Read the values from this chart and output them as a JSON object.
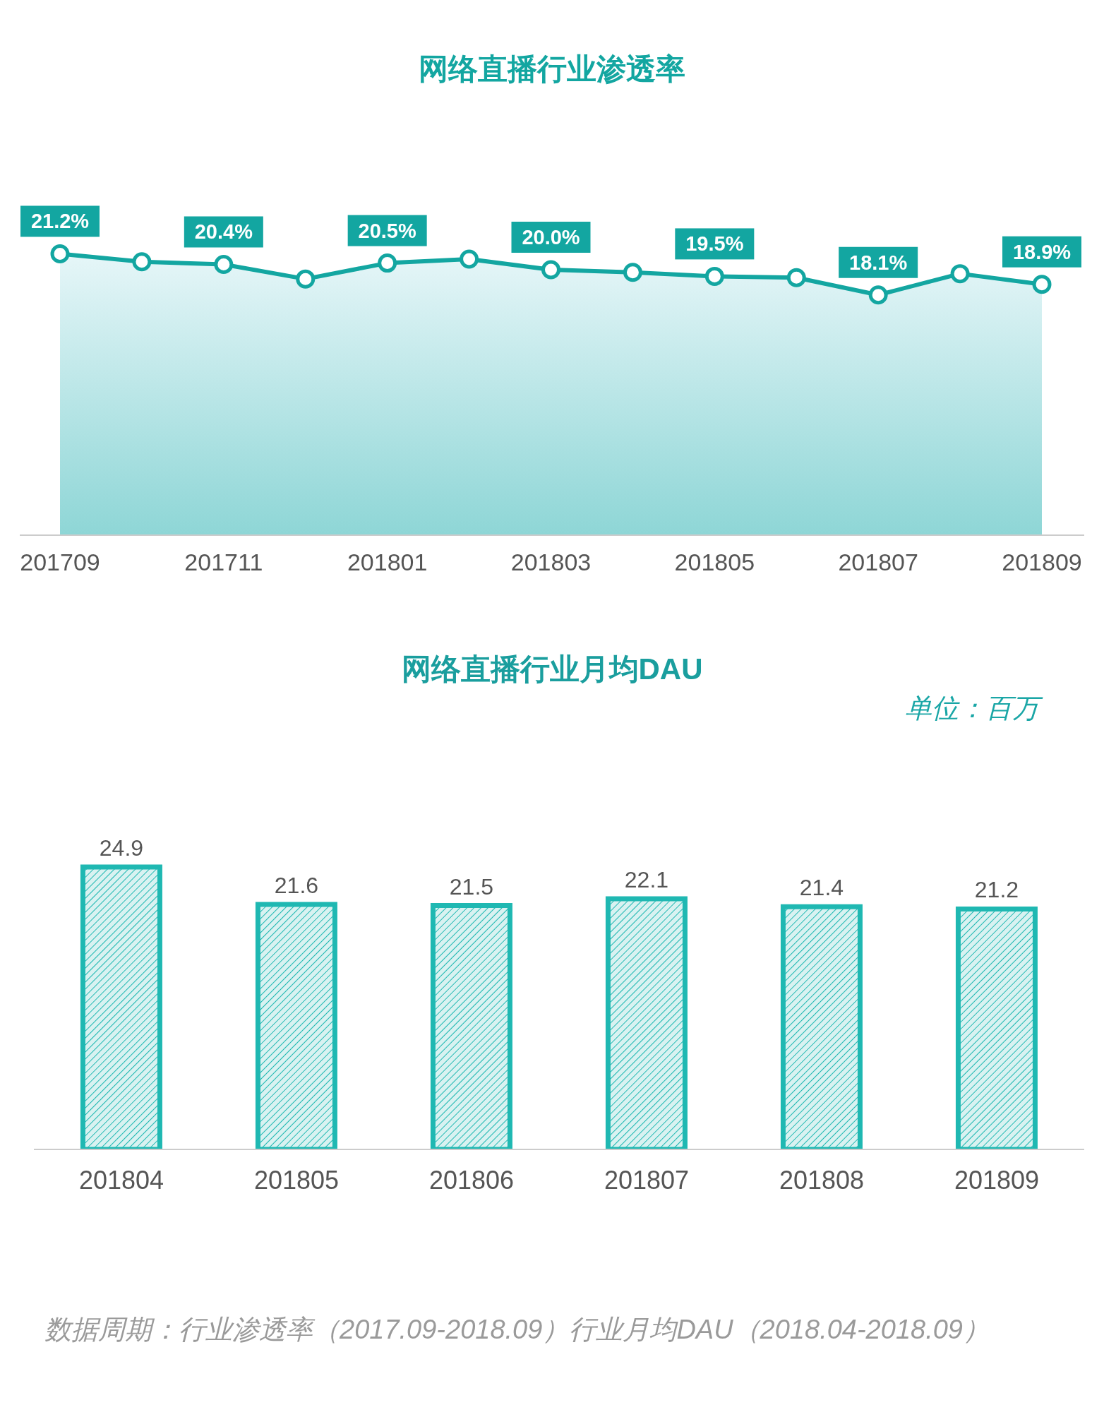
{
  "chart_data": [
    {
      "type": "line",
      "title": "网络直播行业渗透率",
      "categories": [
        "201709",
        null,
        "201711",
        null,
        "201801",
        null,
        "201803",
        null,
        "201805",
        null,
        "201807",
        null,
        "201809"
      ],
      "values": [
        21.2,
        20.6,
        20.4,
        19.3,
        20.5,
        20.8,
        20.0,
        19.8,
        19.5,
        19.4,
        18.1,
        19.7,
        18.9
      ],
      "value_labels": [
        "21.2%",
        null,
        "20.4%",
        null,
        "20.5%",
        null,
        "20.0%",
        null,
        "19.5%",
        null,
        "18.1%",
        null,
        "18.9%"
      ],
      "color": "#13a6a1",
      "tick_labels": "x",
      "marker": "circle",
      "grid": false,
      "legend": false
    },
    {
      "type": "bar",
      "title": "网络直播行业月均DAU",
      "categories": [
        "201804",
        "201805",
        "201806",
        "201807",
        "201808",
        "201809"
      ],
      "values": [
        24.9,
        21.6,
        21.5,
        22.1,
        21.4,
        21.2
      ],
      "color": "#1fb8b2",
      "tick_labels": "x",
      "data_labels": true,
      "grid": false,
      "legend": false,
      "annotations": [
        "单位：百万",
        "数据周期：行业渗透率（2017.09-2018.09）行业月均DAU（2018.04-2018.09）"
      ]
    }
  ]
}
